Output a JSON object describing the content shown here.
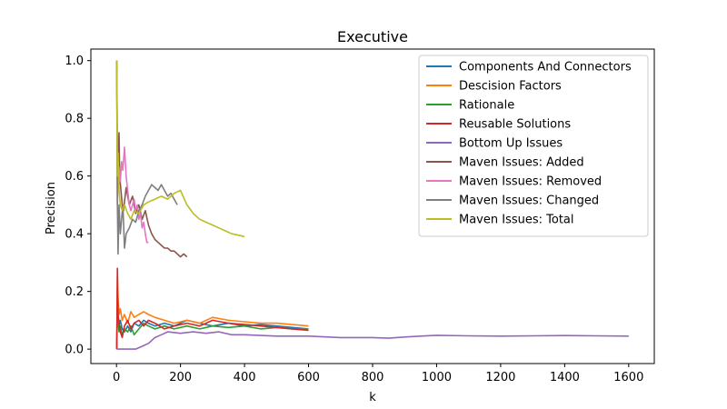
{
  "chart_data": {
    "type": "line",
    "title": "Executive",
    "xlabel": "k",
    "ylabel": "Precision",
    "xlim": [
      -80,
      1680
    ],
    "ylim": [
      -0.05,
      1.04
    ],
    "xticks": [
      0,
      200,
      400,
      600,
      800,
      1000,
      1200,
      1400,
      1600
    ],
    "xtick_labels": [
      "0",
      "200",
      "400",
      "600",
      "800",
      "1000",
      "1200",
      "1400",
      "1600"
    ],
    "yticks": [
      0.0,
      0.2,
      0.4,
      0.6,
      0.8,
      1.0
    ],
    "ytick_labels": [
      "0.0",
      "0.2",
      "0.4",
      "0.6",
      "0.8",
      "1.0"
    ],
    "grid": false,
    "legend_position": "top-right",
    "series": [
      {
        "name": "Components And Connectors",
        "color": "#1f77b4",
        "x": [
          1,
          3,
          5,
          8,
          12,
          18,
          25,
          35,
          45,
          55,
          70,
          85,
          100,
          120,
          150,
          180,
          220,
          260,
          300,
          350,
          400,
          450,
          500,
          550,
          600
        ],
        "y": [
          0.0,
          0.2,
          0.12,
          0.08,
          0.1,
          0.07,
          0.06,
          0.08,
          0.06,
          0.09,
          0.08,
          0.1,
          0.09,
          0.08,
          0.09,
          0.08,
          0.1,
          0.09,
          0.08,
          0.09,
          0.08,
          0.085,
          0.08,
          0.075,
          0.07
        ]
      },
      {
        "name": "Descision Factors",
        "color": "#ff7f0e",
        "x": [
          1,
          3,
          5,
          8,
          12,
          18,
          25,
          35,
          45,
          55,
          70,
          85,
          100,
          120,
          150,
          180,
          220,
          260,
          300,
          350,
          400,
          450,
          500,
          550,
          600
        ],
        "y": [
          0.0,
          0.25,
          0.18,
          0.12,
          0.14,
          0.1,
          0.12,
          0.09,
          0.13,
          0.11,
          0.12,
          0.13,
          0.12,
          0.11,
          0.1,
          0.09,
          0.1,
          0.09,
          0.11,
          0.1,
          0.095,
          0.09,
          0.09,
          0.085,
          0.08
        ]
      },
      {
        "name": "Rationale",
        "color": "#2ca02c",
        "x": [
          1,
          3,
          5,
          8,
          12,
          18,
          25,
          35,
          45,
          55,
          70,
          85,
          100,
          120,
          150,
          180,
          220,
          260,
          300,
          350,
          400,
          450,
          500,
          550,
          600
        ],
        "y": [
          0.0,
          0.15,
          0.1,
          0.06,
          0.08,
          0.05,
          0.07,
          0.06,
          0.08,
          0.05,
          0.07,
          0.09,
          0.08,
          0.07,
          0.08,
          0.07,
          0.08,
          0.07,
          0.08,
          0.075,
          0.08,
          0.07,
          0.075,
          0.07,
          0.07
        ]
      },
      {
        "name": "Reusable Solutions",
        "color": "#d62728",
        "x": [
          1,
          3,
          5,
          8,
          12,
          18,
          25,
          35,
          45,
          55,
          70,
          85,
          100,
          120,
          150,
          180,
          220,
          260,
          300,
          350,
          400,
          450,
          500,
          550,
          600
        ],
        "y": [
          0.0,
          0.28,
          0.12,
          0.09,
          0.06,
          0.04,
          0.08,
          0.1,
          0.07,
          0.09,
          0.1,
          0.08,
          0.1,
          0.09,
          0.07,
          0.08,
          0.09,
          0.08,
          0.1,
          0.09,
          0.085,
          0.08,
          0.075,
          0.07,
          0.065
        ]
      },
      {
        "name": "Bottom Up Issues",
        "color": "#9467bd",
        "x": [
          1,
          10,
          30,
          60,
          80,
          100,
          120,
          140,
          160,
          200,
          240,
          280,
          320,
          360,
          400,
          500,
          600,
          700,
          800,
          850,
          900,
          950,
          1000,
          1100,
          1200,
          1300,
          1400,
          1500,
          1600
        ],
        "y": [
          0.0,
          0.0,
          0.0,
          0.0,
          0.01,
          0.02,
          0.04,
          0.05,
          0.06,
          0.055,
          0.06,
          0.055,
          0.06,
          0.05,
          0.05,
          0.045,
          0.045,
          0.04,
          0.04,
          0.038,
          0.042,
          0.045,
          0.048,
          0.046,
          0.045,
          0.046,
          0.047,
          0.046,
          0.045
        ]
      },
      {
        "name": "Maven Issues: Added",
        "color": "#8c564b",
        "x": [
          1,
          3,
          5,
          8,
          10,
          14,
          18,
          22,
          26,
          30,
          40,
          50,
          60,
          70,
          80,
          90,
          100,
          110,
          120,
          130,
          140,
          150,
          160,
          170,
          180,
          190,
          200,
          210,
          220
        ],
        "y": [
          1.0,
          0.5,
          0.67,
          0.75,
          0.6,
          0.55,
          0.5,
          0.48,
          0.52,
          0.56,
          0.5,
          0.53,
          0.47,
          0.5,
          0.45,
          0.48,
          0.43,
          0.4,
          0.38,
          0.37,
          0.36,
          0.35,
          0.35,
          0.34,
          0.34,
          0.33,
          0.32,
          0.33,
          0.32
        ]
      },
      {
        "name": "Maven Issues: Removed",
        "color": "#e377c2",
        "x": [
          1,
          3,
          5,
          8,
          12,
          16,
          20,
          25,
          30,
          35,
          40,
          45,
          50,
          55,
          60,
          65,
          70,
          75,
          80,
          85,
          90,
          95,
          100
        ],
        "y": [
          1.0,
          0.67,
          0.6,
          0.63,
          0.58,
          0.65,
          0.62,
          0.7,
          0.6,
          0.55,
          0.5,
          0.48,
          0.5,
          0.52,
          0.48,
          0.5,
          0.45,
          0.47,
          0.42,
          0.44,
          0.4,
          0.37,
          0.37
        ]
      },
      {
        "name": "Maven Issues: Changed",
        "color": "#7f7f7f",
        "x": [
          1,
          3,
          5,
          8,
          12,
          16,
          20,
          25,
          30,
          40,
          50,
          60,
          70,
          80,
          90,
          100,
          110,
          120,
          130,
          140,
          150,
          160,
          170,
          180,
          190
        ],
        "y": [
          1.0,
          0.5,
          0.33,
          0.5,
          0.4,
          0.45,
          0.5,
          0.35,
          0.4,
          0.42,
          0.45,
          0.44,
          0.48,
          0.5,
          0.53,
          0.55,
          0.57,
          0.56,
          0.55,
          0.57,
          0.55,
          0.53,
          0.54,
          0.52,
          0.5
        ]
      },
      {
        "name": "Maven Issues: Total",
        "color": "#bcbd22",
        "x": [
          1,
          3,
          5,
          8,
          12,
          18,
          25,
          35,
          45,
          55,
          70,
          85,
          100,
          120,
          140,
          160,
          180,
          200,
          220,
          240,
          260,
          280,
          300,
          320,
          340,
          360,
          380,
          400
        ],
        "y": [
          1.0,
          0.6,
          0.68,
          0.55,
          0.5,
          0.48,
          0.5,
          0.47,
          0.45,
          0.48,
          0.47,
          0.5,
          0.51,
          0.52,
          0.53,
          0.52,
          0.54,
          0.55,
          0.5,
          0.47,
          0.45,
          0.44,
          0.43,
          0.42,
          0.41,
          0.4,
          0.395,
          0.39
        ]
      }
    ]
  }
}
